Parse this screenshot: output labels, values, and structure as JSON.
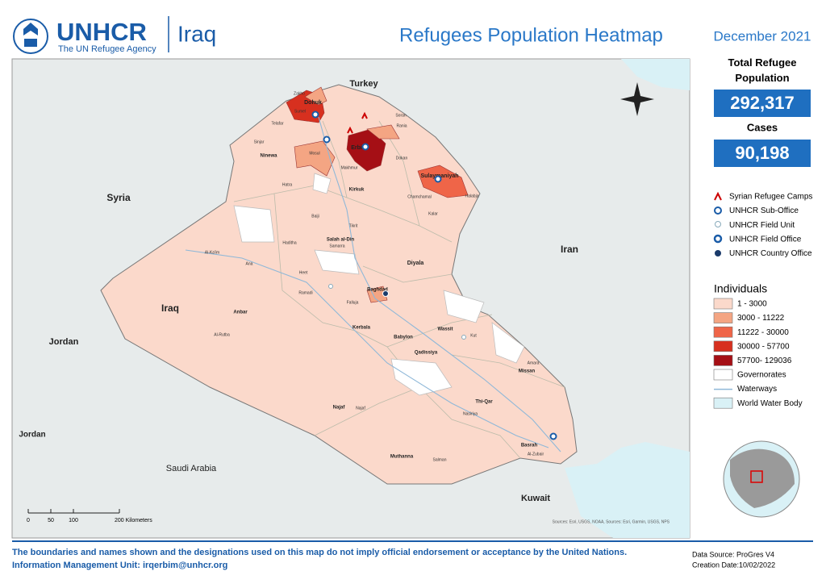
{
  "header": {
    "org": "UNHCR",
    "tagline": "The UN Refugee Agency",
    "country": "Iraq",
    "title": "Refugees Population Heatmap",
    "date": "December 2021"
  },
  "stats": {
    "total_label": "Total Refugee Population",
    "total": "292,317",
    "cases_label": "Cases",
    "cases": "90,198"
  },
  "symbols": [
    "Syrian Refugee Camps",
    "UNHCR Sub-Office",
    "UNHCR Field Unit",
    "UNHCR Field Office",
    "UNHCR Country Office"
  ],
  "legend": {
    "title": "Individuals",
    "classes": [
      {
        "label": "1 - 3000",
        "color": "#fbd9cb"
      },
      {
        "label": "3000 - 11222",
        "color": "#f4a583"
      },
      {
        "label": "11222 - 30000",
        "color": "#ef6548"
      },
      {
        "label": "30000 - 57700",
        "color": "#d7301f"
      },
      {
        "label": "57700- 129036",
        "color": "#a50f15"
      }
    ],
    "other": [
      {
        "label": "Governorates",
        "color": "#ffffff"
      },
      {
        "label": "Waterways",
        "color": "#8fb8d8"
      },
      {
        "label": "World Water Body",
        "color": "#d9f1f6"
      }
    ]
  },
  "map": {
    "labels": [
      "Turkey",
      "Syria",
      "Iran",
      "Jordan",
      "Jordan",
      "Saudi Arabia",
      "Kuwait",
      "Iraq",
      "Dohuk",
      "Ninewa",
      "Erbil",
      "Sulaymaniyah",
      "Kirkuk",
      "Salah al-Din",
      "Diyala",
      "Baghdad",
      "Anbar",
      "Kerbala",
      "Babylon",
      "Wassit",
      "Qadissiya",
      "Missan",
      "Thi-Qar",
      "Najaf",
      "Muthanna",
      "Basrah",
      "Zakho",
      "Sumel",
      "Sinjar",
      "Telafar",
      "Mosul",
      "Hatra",
      "Makhmur",
      "Al-Rutba",
      "Al-Ka'im",
      "Haditha",
      "Ana",
      "Heet",
      "Ramadi",
      "Falluja",
      "Samarra",
      "Tikrit",
      "Baiji",
      "Kut",
      "Amara",
      "Nasiriya",
      "Al-Zubair",
      "Salman",
      "Kalar",
      "Chamchamal",
      "Halabja",
      "Rania",
      "Soran",
      "Dokan",
      "Najaf"
    ],
    "scale": [
      "0",
      "50",
      "100",
      "200 Kilometers"
    ],
    "credits": "Sources: Esri, USGS, NOAA, Sources: Esri, Garmin, USGS, NPS"
  },
  "footer": {
    "disclaimer": "The boundaries and names shown and the designations used on this map do not imply official endorsement or acceptance by the United Nations.",
    "contact": "Information Management Unit: irqerbim@unhcr.org",
    "source": "Data Source: ProGres V4",
    "created": "Creation Date:10/02/2022"
  }
}
